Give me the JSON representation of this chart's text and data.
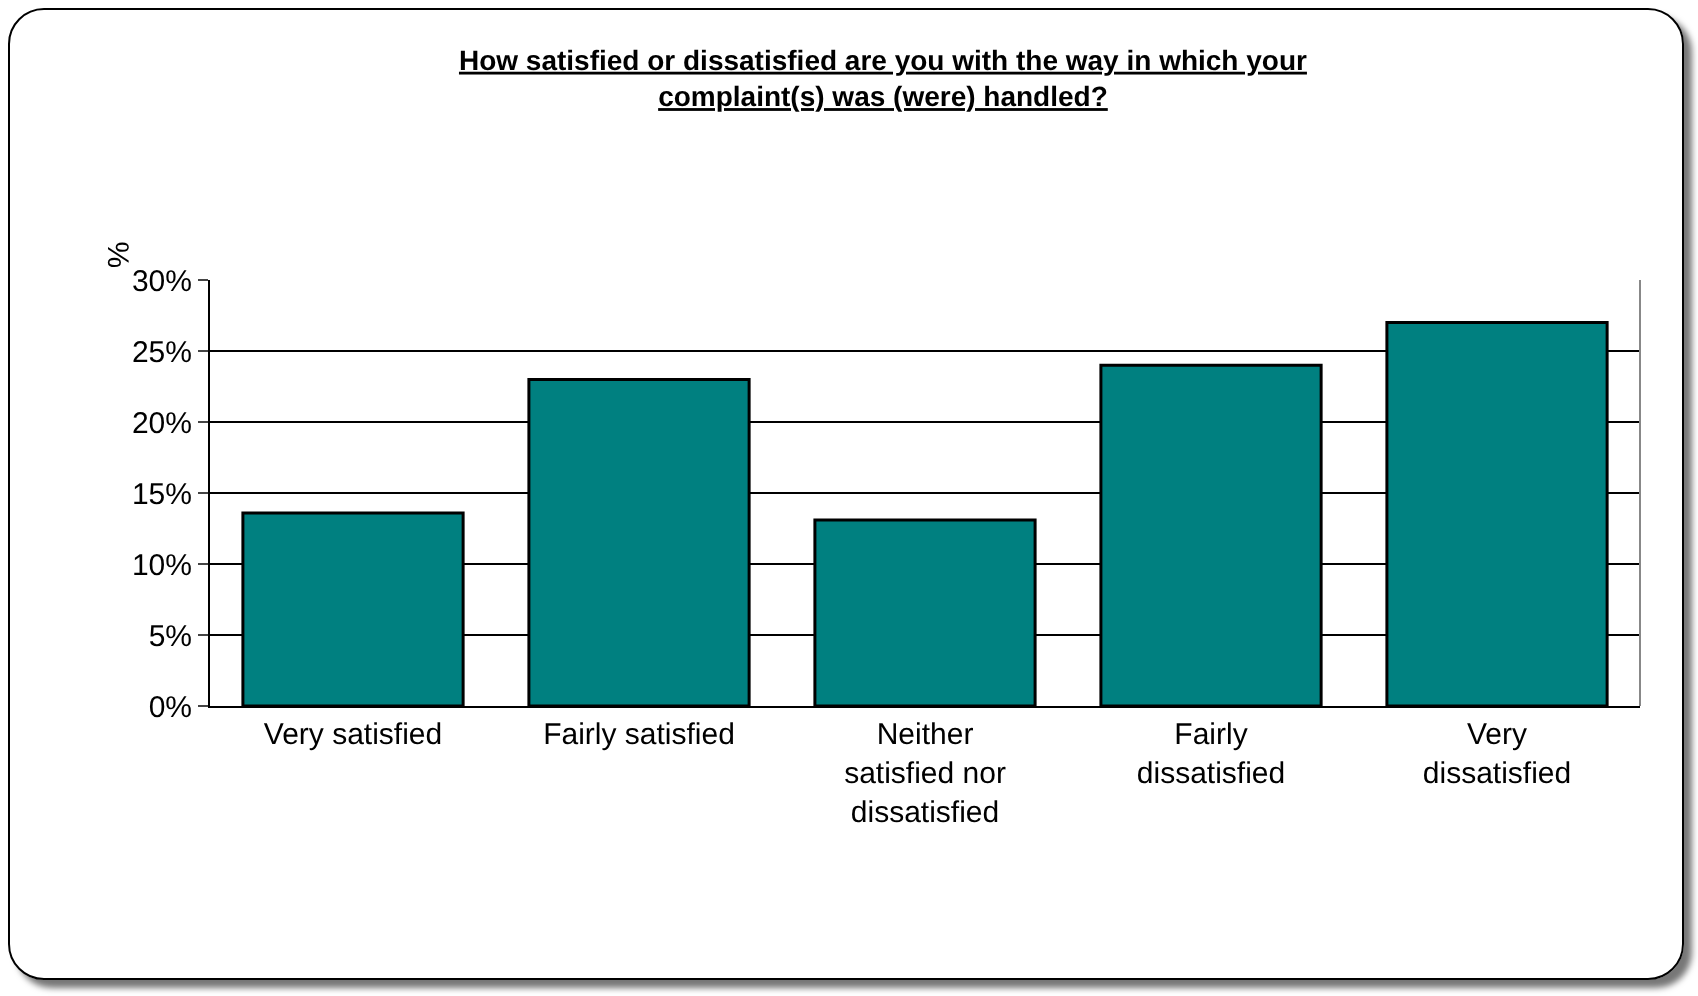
{
  "chart_data": {
    "type": "bar",
    "title": "How satisfied or dissatisfied are you with the way in which your complaint(s) was (were) handled?",
    "ylabel": "%",
    "categories": [
      "Very satisfied",
      "Fairly satisfied",
      "Neither satisfied nor dissatisfied",
      "Fairly dissatisfied",
      "Very dissatisfied"
    ],
    "values": [
      13.6,
      23,
      13.1,
      24,
      27
    ],
    "color": "#008080",
    "ylim": [
      0,
      30
    ],
    "yticks": [
      {
        "value": 0,
        "label": "0%"
      },
      {
        "value": 5,
        "label": "5%"
      },
      {
        "value": 10,
        "label": "10%"
      },
      {
        "value": 15,
        "label": "15%"
      },
      {
        "value": 20,
        "label": "20%"
      },
      {
        "value": 25,
        "label": "25%"
      },
      {
        "value": 30,
        "label": "30%"
      }
    ],
    "grid": "y"
  }
}
